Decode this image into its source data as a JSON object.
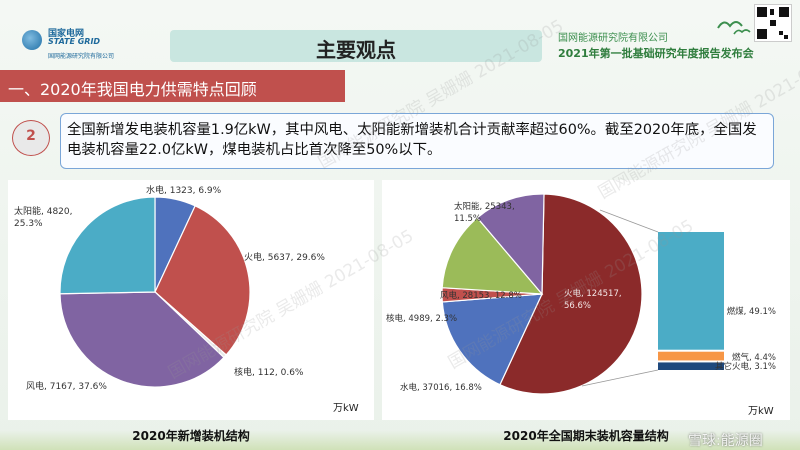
{
  "header": {
    "logo_line1": "国家电网",
    "logo_line2": "STATE GRID",
    "logo_line3": "国网能源研究院有限公司",
    "title": "主要观点",
    "org": "国网能源研究院有限公司",
    "conference": "2021年第一批基础研究年度报告发布会"
  },
  "section": {
    "title": "一、2020年我国电力供需特点回顾"
  },
  "point": {
    "number": "2",
    "text": "全国新增发电装机容量1.9亿kW，其中风电、太阳能新增装机合计贡献率超过60%。截至2020年底，全国发电装机容量22.0亿kW，煤电装机占比首次降至50%以下。"
  },
  "watermark": {
    "text": "国网能源研究院 吴姗姗 2021-08-05",
    "corner": "雪球:能源圈"
  },
  "colors": {
    "hydro": "#4f72bd",
    "thermal": "#c0504d",
    "nuclear": "#e8e8e8",
    "wind": "#8064a2",
    "solar": "#4bacc6",
    "wind2": "#9bbb59",
    "coal": "#4bacc6",
    "gas": "#f79646",
    "other_thermal": "#1f497d",
    "section_bar": "#c0504d",
    "title_banner": "#c9e6e0"
  },
  "chart_data": [
    {
      "type": "pie",
      "title": "2020年新增装机结构",
      "unit": "万kW",
      "slices": [
        {
          "label": "水电",
          "value": 1323,
          "percent": "6.9%",
          "color": "#4f72bd",
          "text": "水电, 1323, 6.9%"
        },
        {
          "label": "火电",
          "value": 5637,
          "percent": "29.6%",
          "color": "#c0504d",
          "text": "火电, 5637, 29.6%"
        },
        {
          "label": "核电",
          "value": 112,
          "percent": "0.6%",
          "color": "#e8e8e8",
          "text": "核电, 112, 0.6%"
        },
        {
          "label": "风电",
          "value": 7167,
          "percent": "37.6%",
          "color": "#8064a2",
          "text": "风电, 7167, 37.6%"
        },
        {
          "label": "太阳能",
          "value": 4820,
          "percent": "25.3%",
          "color": "#4bacc6",
          "text": "太阳能, 4820, 25.3%"
        }
      ]
    },
    {
      "type": "pie",
      "title": "2020年全国期末装机容量结构",
      "unit": "万kW",
      "slices": [
        {
          "label": "火电",
          "value": 124517,
          "percent": "56.6%",
          "color": "#8b2a2a",
          "text": "火电, 124517, 56.6%"
        },
        {
          "label": "水电",
          "value": 37016,
          "percent": "16.8%",
          "color": "#4f72bd",
          "text": "水电, 37016, 16.8%"
        },
        {
          "label": "核电",
          "value": 4989,
          "percent": "2.3%",
          "color": "#c0504d",
          "text": "核电, 4989, 2.3%"
        },
        {
          "label": "风电",
          "value": 28153,
          "percent": "12.8%",
          "color": "#9bbb59",
          "text": "风电, 28153, 12.8%"
        },
        {
          "label": "太阳能",
          "value": 25343,
          "percent": "11.5%",
          "color": "#8064a2",
          "text": "太阳能, 25343, 11.5%"
        }
      ],
      "breakdown": {
        "type": "stacked-bar",
        "of": "火电",
        "segments": [
          {
            "label": "燃煤",
            "percent": 49.1,
            "text": "燃煤, 49.1%",
            "color": "#4bacc6"
          },
          {
            "label": "燃气",
            "percent": 4.4,
            "text": "燃气, 4.4%",
            "color": "#f79646"
          },
          {
            "label": "其它火电",
            "percent": 3.1,
            "text": "其它火电, 3.1%",
            "color": "#1f497d"
          }
        ]
      }
    }
  ]
}
